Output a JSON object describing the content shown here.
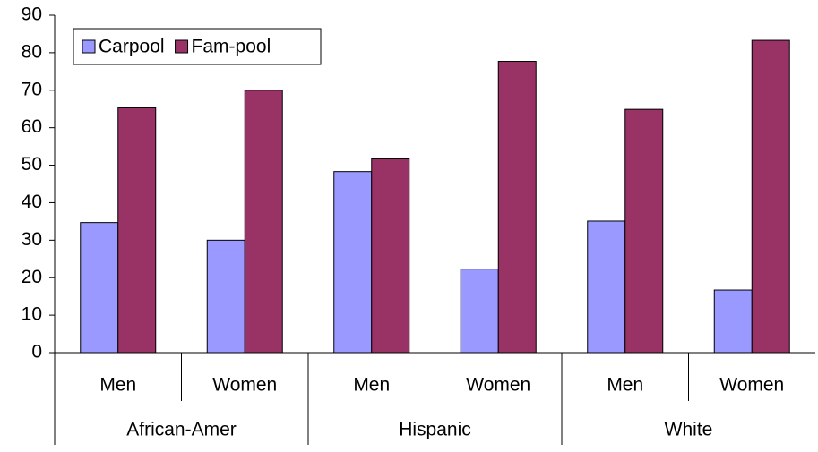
{
  "chart_data": {
    "type": "bar",
    "categories": [
      "Men",
      "Women",
      "Men",
      "Women",
      "Men",
      "Women"
    ],
    "category_groups": [
      "African-Amer",
      "Hispanic",
      "White"
    ],
    "series": [
      {
        "name": "Carpool",
        "color": "#9999ff",
        "values": [
          34.7,
          30,
          48.3,
          22.3,
          35.1,
          16.7
        ]
      },
      {
        "name": "Fam-pool",
        "color": "#993366",
        "values": [
          65.3,
          70,
          51.7,
          77.7,
          64.9,
          83.3
        ]
      }
    ],
    "ylim": [
      0,
      90
    ],
    "yticks": [
      0,
      10,
      20,
      30,
      40,
      50,
      60,
      70,
      80,
      90
    ],
    "grid": false,
    "legend": "top-left"
  }
}
